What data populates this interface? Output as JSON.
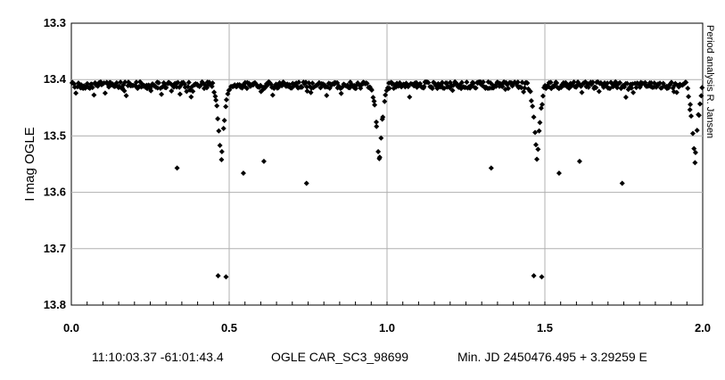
{
  "chart_data": {
    "type": "scatter",
    "ylabel": "I mag OGLE",
    "xlim": [
      0.0,
      2.0
    ],
    "ylim": [
      13.3,
      13.8
    ],
    "y_inverted": true,
    "x_ticks": [
      "0.0",
      "0.5",
      "1.0",
      "1.5",
      "2.0"
    ],
    "y_ticks": [
      "13.3",
      "13.4",
      "13.5",
      "13.6",
      "13.7",
      "13.8"
    ],
    "grid": true,
    "marker": "diamond",
    "marker_color": "#000000",
    "series": [
      {
        "period_template": {
          "baseline_mag": 13.41,
          "primary_eclipse": {
            "phase": 0.475,
            "min_mag": 13.55,
            "half_width": 0.03
          },
          "secondary_eclipse": {
            "phase": 0.975,
            "min_mag": 13.55,
            "half_width": 0.03
          },
          "points_per_cycle": 300,
          "repeat_cycles": 2
        },
        "outliers": [
          [
            0.335,
            13.557
          ],
          [
            0.465,
            13.748
          ],
          [
            0.49,
            13.75
          ],
          [
            0.545,
            13.566
          ],
          [
            0.61,
            13.545
          ],
          [
            0.745,
            13.584
          ],
          [
            1.33,
            13.557
          ],
          [
            1.465,
            13.748
          ],
          [
            1.49,
            13.75
          ],
          [
            1.545,
            13.566
          ],
          [
            1.61,
            13.545
          ],
          [
            1.745,
            13.584
          ]
        ]
      }
    ],
    "side_credit": "Period analysis  R. Jansen",
    "caption": {
      "coords": "11:10:03.37 -61:01:43.4",
      "star_id": "OGLE CAR_SC3_98699",
      "ephemeris": "Min. JD 2450476.495 + 3.29259 E"
    }
  }
}
